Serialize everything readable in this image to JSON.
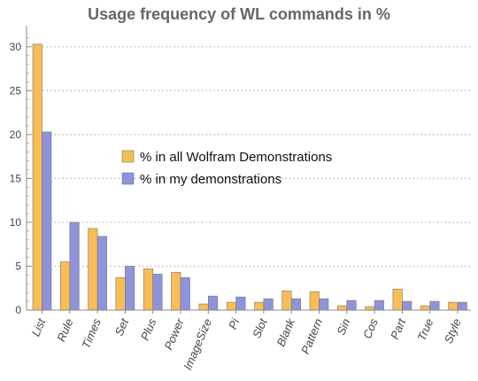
{
  "chart_data": {
    "type": "bar",
    "title": "Usage frequency of WL commands in %",
    "xlabel": "",
    "ylabel": "",
    "ylim": [
      0,
      32
    ],
    "yticks": [
      0,
      5,
      10,
      15,
      20,
      25,
      30
    ],
    "grid": "horizontal-dotted",
    "legend_position": "center",
    "categories": [
      "List",
      "Rule",
      "Times",
      "Set",
      "Plus",
      "Power",
      "ImageSize",
      "Pi",
      "Slot",
      "Blank",
      "Pattern",
      "Sin",
      "Cos",
      "Part",
      "True",
      "Style"
    ],
    "series": [
      {
        "name": "% in all Wolfram Demonstrations",
        "color": "#F9BD55",
        "values": [
          30.3,
          5.5,
          9.3,
          3.7,
          4.7,
          4.3,
          0.7,
          0.9,
          0.9,
          2.2,
          2.1,
          0.5,
          0.4,
          2.4,
          0.5,
          0.9
        ]
      },
      {
        "name": "% in my demonstrations",
        "color": "#8E93DA",
        "values": [
          20.3,
          10.0,
          8.4,
          5.0,
          4.1,
          3.7,
          1.6,
          1.5,
          1.3,
          1.3,
          1.3,
          1.1,
          1.1,
          1.0,
          1.0,
          0.9
        ]
      }
    ]
  }
}
